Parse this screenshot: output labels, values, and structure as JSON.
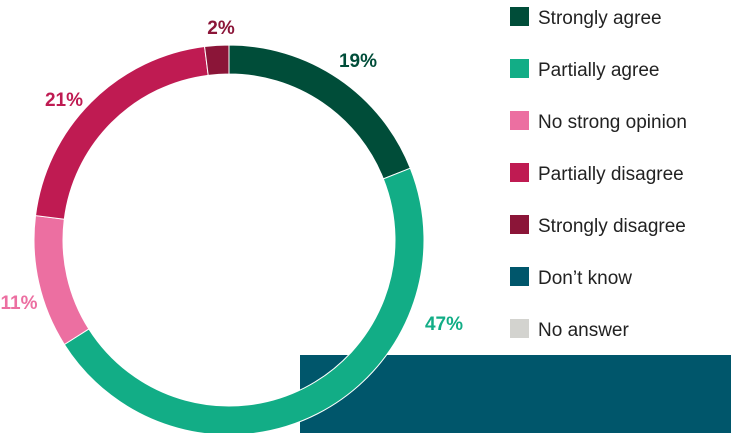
{
  "chart_data": {
    "type": "pie",
    "variant": "donut",
    "title": "",
    "legend_position": "right",
    "slices": [
      {
        "name": "Strongly agree",
        "value": 19,
        "label": "19%",
        "color": "#004d39"
      },
      {
        "name": "Partially agree",
        "value": 47,
        "label": "47%",
        "color": "#12ad86"
      },
      {
        "name": "No strong opinion",
        "value": 11,
        "label": "11%",
        "color": "#ec6fa1"
      },
      {
        "name": "Partially disagree",
        "value": 21,
        "label": "21%",
        "color": "#bf1b52"
      },
      {
        "name": "Strongly disagree",
        "value": 2,
        "label": "2%",
        "color": "#8b1538"
      },
      {
        "name": "Don’t know",
        "value": 0,
        "label": "",
        "color": "#00566b"
      },
      {
        "name": "No answer",
        "value": 0,
        "label": "",
        "color": "#d3d3cf"
      }
    ]
  }
}
